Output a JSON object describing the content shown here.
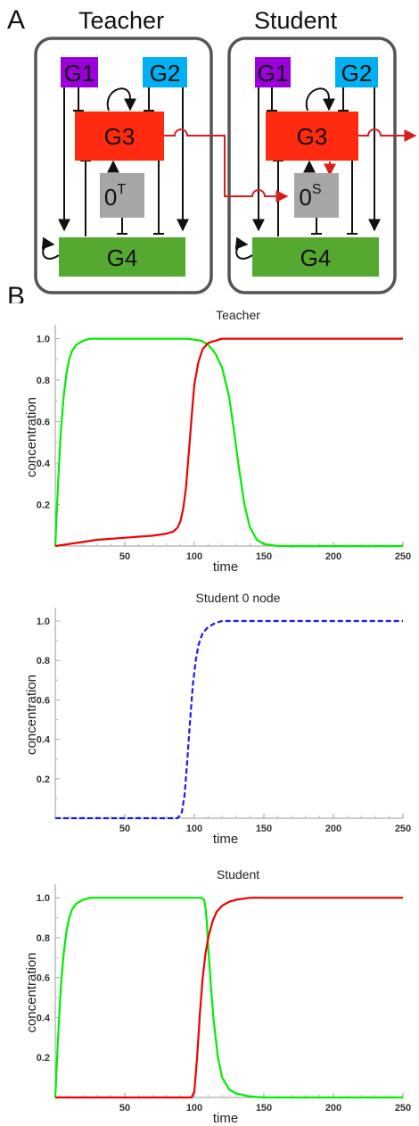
{
  "panelA": {
    "letter": "A",
    "teacher": {
      "title": "Teacher",
      "nodes": {
        "g1": "G1",
        "g2": "G2",
        "g3": "G3",
        "g4": "G4",
        "zero": "0",
        "zero_sup": "T"
      }
    },
    "student": {
      "title": "Student",
      "nodes": {
        "g1": "G1",
        "g2": "G2",
        "g3": "G3",
        "g4": "G4",
        "zero": "0",
        "zero_sup": "S"
      }
    },
    "colors": {
      "g1": "#9b00d9",
      "g2": "#00b0f0",
      "g3": "#ff2a10",
      "g4": "#55a830",
      "zero": "#a6a6a6",
      "signal": "#d62020"
    }
  },
  "panelB": {
    "letter": "B"
  },
  "chart_data": [
    {
      "type": "line",
      "title": "Teacher",
      "xlabel": "time",
      "ylabel": "concentration",
      "xlim": [
        0,
        250
      ],
      "ylim": [
        0,
        1.05
      ],
      "xticks": [
        50,
        100,
        150,
        200,
        250
      ],
      "yticks": [
        0.2,
        0.4,
        0.6,
        0.8,
        1.0
      ],
      "series": [
        {
          "color": "#00ee00",
          "dashed": false,
          "x": [
            0,
            2,
            4,
            6,
            8,
            10,
            12,
            15,
            20,
            25,
            30,
            40,
            60,
            80,
            95,
            105,
            110,
            115,
            120,
            125,
            128,
            132,
            136,
            140,
            145,
            150,
            160,
            200,
            250
          ],
          "y": [
            0,
            0.3,
            0.55,
            0.72,
            0.83,
            0.9,
            0.94,
            0.97,
            0.99,
            1.0,
            1.0,
            1.0,
            1.0,
            1.0,
            1.0,
            0.99,
            0.97,
            0.93,
            0.86,
            0.72,
            0.58,
            0.38,
            0.2,
            0.09,
            0.03,
            0.01,
            0.0,
            0.0,
            0.0
          ]
        },
        {
          "color": "#ee0000",
          "dashed": false,
          "x": [
            0,
            10,
            20,
            30,
            40,
            50,
            60,
            70,
            80,
            85,
            88,
            90,
            92,
            94,
            96,
            98,
            100,
            103,
            106,
            110,
            115,
            120,
            130,
            150,
            200,
            250
          ],
          "y": [
            0,
            0.01,
            0.02,
            0.03,
            0.035,
            0.04,
            0.045,
            0.05,
            0.06,
            0.07,
            0.09,
            0.12,
            0.18,
            0.28,
            0.45,
            0.62,
            0.78,
            0.89,
            0.95,
            0.98,
            0.99,
            1.0,
            1.0,
            1.0,
            1.0,
            1.0
          ]
        }
      ]
    },
    {
      "type": "line",
      "title": "Student 0 node",
      "xlabel": "time",
      "ylabel": "concentration",
      "xlim": [
        0,
        250
      ],
      "ylim": [
        0,
        1.05
      ],
      "xticks": [
        50,
        100,
        150,
        200,
        250
      ],
      "yticks": [
        0.2,
        0.4,
        0.6,
        0.8,
        1.0
      ],
      "series": [
        {
          "color": "#1a1aee",
          "dashed": true,
          "x": [
            0,
            50,
            88,
            91,
            93,
            95,
            97,
            99,
            101,
            103,
            106,
            110,
            115,
            120,
            130,
            150,
            200,
            250
          ],
          "y": [
            0,
            0,
            0,
            0.03,
            0.12,
            0.3,
            0.5,
            0.68,
            0.8,
            0.88,
            0.94,
            0.97,
            0.99,
            1.0,
            1.0,
            1.0,
            1.0,
            1.0
          ]
        }
      ]
    },
    {
      "type": "line",
      "title": "Student",
      "xlabel": "time",
      "ylabel": "concentration",
      "xlim": [
        0,
        250
      ],
      "ylim": [
        0,
        1.05
      ],
      "xticks": [
        50,
        100,
        150,
        200,
        250
      ],
      "yticks": [
        0.2,
        0.4,
        0.6,
        0.8,
        1.0
      ],
      "series": [
        {
          "color": "#00ee00",
          "dashed": false,
          "x": [
            0,
            2,
            4,
            6,
            8,
            10,
            12,
            15,
            20,
            25,
            30,
            50,
            80,
            100,
            105,
            107,
            108,
            109,
            110,
            112,
            114,
            117,
            120,
            125,
            130,
            140,
            150,
            200,
            250
          ],
          "y": [
            0,
            0.3,
            0.55,
            0.72,
            0.83,
            0.9,
            0.94,
            0.97,
            0.99,
            1.0,
            1.0,
            1.0,
            1.0,
            1.0,
            1.0,
            0.99,
            0.95,
            0.88,
            0.75,
            0.55,
            0.38,
            0.2,
            0.1,
            0.04,
            0.02,
            0.005,
            0.0,
            0.0,
            0.0
          ]
        },
        {
          "color": "#ee0000",
          "dashed": false,
          "x": [
            0,
            50,
            98,
            100,
            102,
            104,
            106,
            108,
            110,
            113,
            116,
            120,
            125,
            130,
            140,
            150,
            200,
            250
          ],
          "y": [
            0,
            0,
            0,
            0.03,
            0.2,
            0.42,
            0.6,
            0.72,
            0.8,
            0.88,
            0.93,
            0.96,
            0.98,
            0.99,
            1.0,
            1.0,
            1.0,
            1.0
          ]
        }
      ]
    }
  ]
}
